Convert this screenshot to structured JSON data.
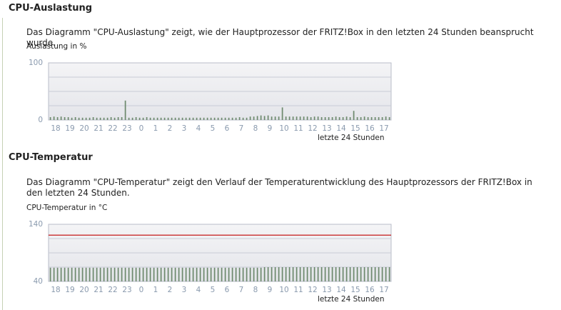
{
  "sections": [
    {
      "heading": "CPU-Auslastung",
      "description": "Das Diagramm \"CPU-Auslastung\" zeigt, wie der Hauptprozessor der FRITZ!Box in den letzten 24 Stunden beansprucht wurde.",
      "chart_data": {
        "type": "bar",
        "ylabel": "Auslastung in %",
        "xlabel": "letzte 24 Stunden",
        "color": "#6e8a6e",
        "grid_color": "#c8cbd6",
        "ylim": [
          0,
          100
        ],
        "yticks": [
          0,
          100
        ],
        "ygrid": [
          25,
          50,
          75
        ],
        "xlim": [
          0,
          24
        ],
        "xticks": [
          {
            "value": 0.5,
            "label": "18"
          },
          {
            "value": 1.5,
            "label": "19"
          },
          {
            "value": 2.5,
            "label": "20"
          },
          {
            "value": 3.5,
            "label": "21"
          },
          {
            "value": 4.5,
            "label": "22"
          },
          {
            "value": 5.5,
            "label": "23"
          },
          {
            "value": 6.5,
            "label": "0"
          },
          {
            "value": 7.5,
            "label": "1"
          },
          {
            "value": 8.5,
            "label": "2"
          },
          {
            "value": 9.5,
            "label": "3"
          },
          {
            "value": 10.5,
            "label": "4"
          },
          {
            "value": 11.5,
            "label": "5"
          },
          {
            "value": 12.5,
            "label": "6"
          },
          {
            "value": 13.5,
            "label": "7"
          },
          {
            "value": 14.5,
            "label": "8"
          },
          {
            "value": 15.5,
            "label": "9"
          },
          {
            "value": 16.5,
            "label": "10"
          },
          {
            "value": 17.5,
            "label": "11"
          },
          {
            "value": 18.5,
            "label": "12"
          },
          {
            "value": 19.5,
            "label": "13"
          },
          {
            "value": 20.5,
            "label": "14"
          },
          {
            "value": 21.5,
            "label": "15"
          },
          {
            "value": 22.5,
            "label": "16"
          },
          {
            "value": 23.5,
            "label": "17"
          }
        ],
        "values": [
          5,
          6,
          5,
          6,
          5,
          5,
          4,
          5,
          4,
          4,
          4,
          4,
          5,
          4,
          4,
          4,
          4,
          5,
          4,
          5,
          5,
          34,
          4,
          4,
          5,
          4,
          4,
          5,
          4,
          4,
          4,
          4,
          4,
          4,
          4,
          4,
          4,
          4,
          4,
          4,
          4,
          4,
          4,
          4,
          4,
          4,
          4,
          4,
          4,
          4,
          4,
          4,
          4,
          5,
          4,
          4,
          6,
          6,
          7,
          8,
          7,
          8,
          6,
          6,
          6,
          22,
          6,
          6,
          6,
          6,
          6,
          6,
          6,
          5,
          6,
          6,
          5,
          5,
          5,
          5,
          6,
          5,
          5,
          6,
          5,
          16,
          5,
          5,
          6,
          5,
          5,
          5,
          5,
          5,
          6,
          5
        ]
      }
    },
    {
      "heading": "CPU-Temperatur",
      "description": "Das Diagramm \"CPU-Temperatur\" zeigt den Verlauf der Temperaturentwicklung des Hauptprozessors der FRITZ!Box in den letzten 24 Stunden.",
      "chart_data": {
        "type": "bar",
        "ylabel": "CPU-Temperatur in °C",
        "xlabel": "letzte 24 Stunden",
        "color": "#6e8a6e",
        "grid_color": "#c8cbd6",
        "ylim": [
          40,
          140
        ],
        "yticks": [
          40,
          140
        ],
        "ygrid": [
          65,
          90,
          115
        ],
        "threshold": 121,
        "threshold_color": "#c00000",
        "xlim": [
          0,
          24
        ],
        "xticks": [
          {
            "value": 0.5,
            "label": "18"
          },
          {
            "value": 1.5,
            "label": "19"
          },
          {
            "value": 2.5,
            "label": "20"
          },
          {
            "value": 3.5,
            "label": "21"
          },
          {
            "value": 4.5,
            "label": "22"
          },
          {
            "value": 5.5,
            "label": "23"
          },
          {
            "value": 6.5,
            "label": "0"
          },
          {
            "value": 7.5,
            "label": "1"
          },
          {
            "value": 8.5,
            "label": "2"
          },
          {
            "value": 9.5,
            "label": "3"
          },
          {
            "value": 10.5,
            "label": "4"
          },
          {
            "value": 11.5,
            "label": "5"
          },
          {
            "value": 12.5,
            "label": "6"
          },
          {
            "value": 13.5,
            "label": "7"
          },
          {
            "value": 14.5,
            "label": "8"
          },
          {
            "value": 15.5,
            "label": "9"
          },
          {
            "value": 16.5,
            "label": "10"
          },
          {
            "value": 17.5,
            "label": "11"
          },
          {
            "value": 18.5,
            "label": "12"
          },
          {
            "value": 19.5,
            "label": "13"
          },
          {
            "value": 20.5,
            "label": "14"
          },
          {
            "value": 21.5,
            "label": "15"
          },
          {
            "value": 22.5,
            "label": "16"
          },
          {
            "value": 23.5,
            "label": "17"
          }
        ],
        "values": [
          64,
          64,
          64,
          64,
          64,
          64,
          64,
          64,
          64,
          64,
          64,
          64,
          64,
          64,
          64,
          64,
          64,
          64,
          64,
          64,
          64,
          64,
          64,
          64,
          64,
          64,
          64,
          64,
          64,
          64,
          64,
          64,
          64,
          64,
          64,
          64,
          64,
          64,
          64,
          64,
          64,
          64,
          64,
          64,
          64,
          64,
          64,
          64,
          64,
          64,
          64,
          64,
          64,
          64,
          64,
          64,
          64,
          64,
          64,
          64,
          65,
          65,
          65,
          65,
          65,
          65,
          65,
          65,
          65,
          65,
          65,
          65,
          65,
          65,
          65,
          65,
          65,
          65,
          65,
          65,
          65,
          65,
          65,
          65,
          65,
          65,
          65,
          65,
          65,
          65,
          65,
          65,
          65,
          65,
          65,
          65
        ]
      }
    }
  ]
}
